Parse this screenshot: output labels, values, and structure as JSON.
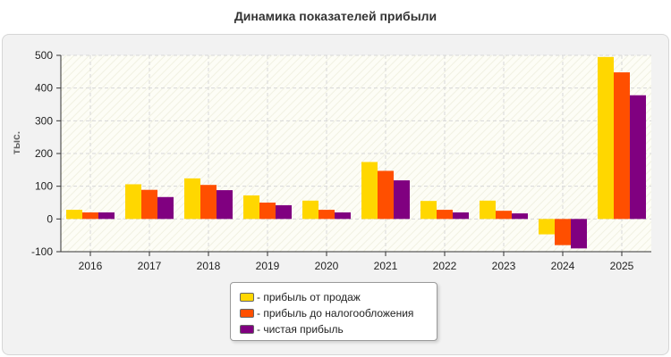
{
  "chart_data": {
    "type": "bar",
    "title": "Динамика показателей прибыли",
    "xlabel": "",
    "ylabel": "тыс.",
    "ylim": [
      -100,
      500
    ],
    "yticks": [
      -100,
      0,
      100,
      200,
      300,
      400,
      500
    ],
    "grid": true,
    "legend_position": "bottom-center",
    "categories": [
      "2016",
      "2017",
      "2018",
      "2019",
      "2020",
      "2021",
      "2022",
      "2023",
      "2024",
      "2025"
    ],
    "series": [
      {
        "name": "- прибыль от продаж",
        "color": "#ffd700",
        "values": [
          28,
          106,
          124,
          72,
          56,
          174,
          55,
          56,
          -47,
          495
        ]
      },
      {
        "name": "- прибыль до налогообложения",
        "color": "#ff4f00",
        "values": [
          20,
          89,
          104,
          50,
          28,
          147,
          28,
          25,
          -80,
          448
        ]
      },
      {
        "name": "- чистая прибыль",
        "color": "#800080",
        "values": [
          20,
          67,
          88,
          42,
          20,
          118,
          20,
          17,
          -90,
          378
        ]
      }
    ]
  }
}
